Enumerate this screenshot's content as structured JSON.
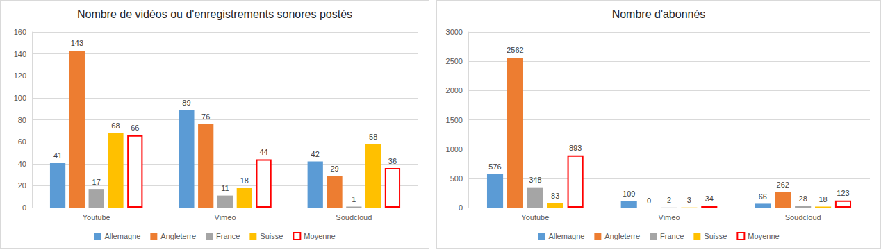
{
  "chart_data": [
    {
      "type": "bar",
      "title": "Nombre de vidéos ou d'enregistrements sonores postés",
      "categories": [
        "Youtube",
        "Vimeo",
        "Soudcloud"
      ],
      "series": [
        {
          "name": "Allemagne",
          "color": "#5b9bd5",
          "values": [
            41,
            89,
            42
          ]
        },
        {
          "name": "Angleterre",
          "color": "#ed7d31",
          "values": [
            143,
            76,
            29
          ]
        },
        {
          "name": "France",
          "color": "#a5a5a5",
          "values": [
            17,
            11,
            1
          ]
        },
        {
          "name": "Suisse",
          "color": "#ffc000",
          "values": [
            68,
            18,
            58
          ]
        },
        {
          "name": "Moyenne",
          "color": "#ff0000",
          "marker": "outline",
          "values": [
            66,
            44,
            36
          ]
        }
      ],
      "ylim": [
        0,
        160
      ],
      "yticks": [
        0,
        20,
        40,
        60,
        80,
        100,
        120,
        140,
        160
      ],
      "grid": true,
      "data_labels": true,
      "legend": "bottom"
    },
    {
      "type": "bar",
      "title": "Nombre d'abonnés",
      "categories": [
        "Youtube",
        "Vimeo",
        "Soudcloud"
      ],
      "series": [
        {
          "name": "Allemagne",
          "color": "#5b9bd5",
          "values": [
            576,
            109,
            66
          ]
        },
        {
          "name": "Angleterre",
          "color": "#ed7d31",
          "values": [
            2562,
            0,
            262
          ]
        },
        {
          "name": "France",
          "color": "#a5a5a5",
          "values": [
            348,
            2,
            28
          ]
        },
        {
          "name": "Suisse",
          "color": "#ffc000",
          "values": [
            83,
            3,
            18
          ]
        },
        {
          "name": "Moyenne",
          "color": "#ff0000",
          "marker": "outline",
          "values": [
            893,
            34,
            123
          ]
        }
      ],
      "ylim": [
        0,
        3000
      ],
      "yticks": [
        0,
        500,
        1000,
        1500,
        2000,
        2500,
        3000
      ],
      "grid": true,
      "data_labels": true,
      "legend": "bottom"
    }
  ]
}
